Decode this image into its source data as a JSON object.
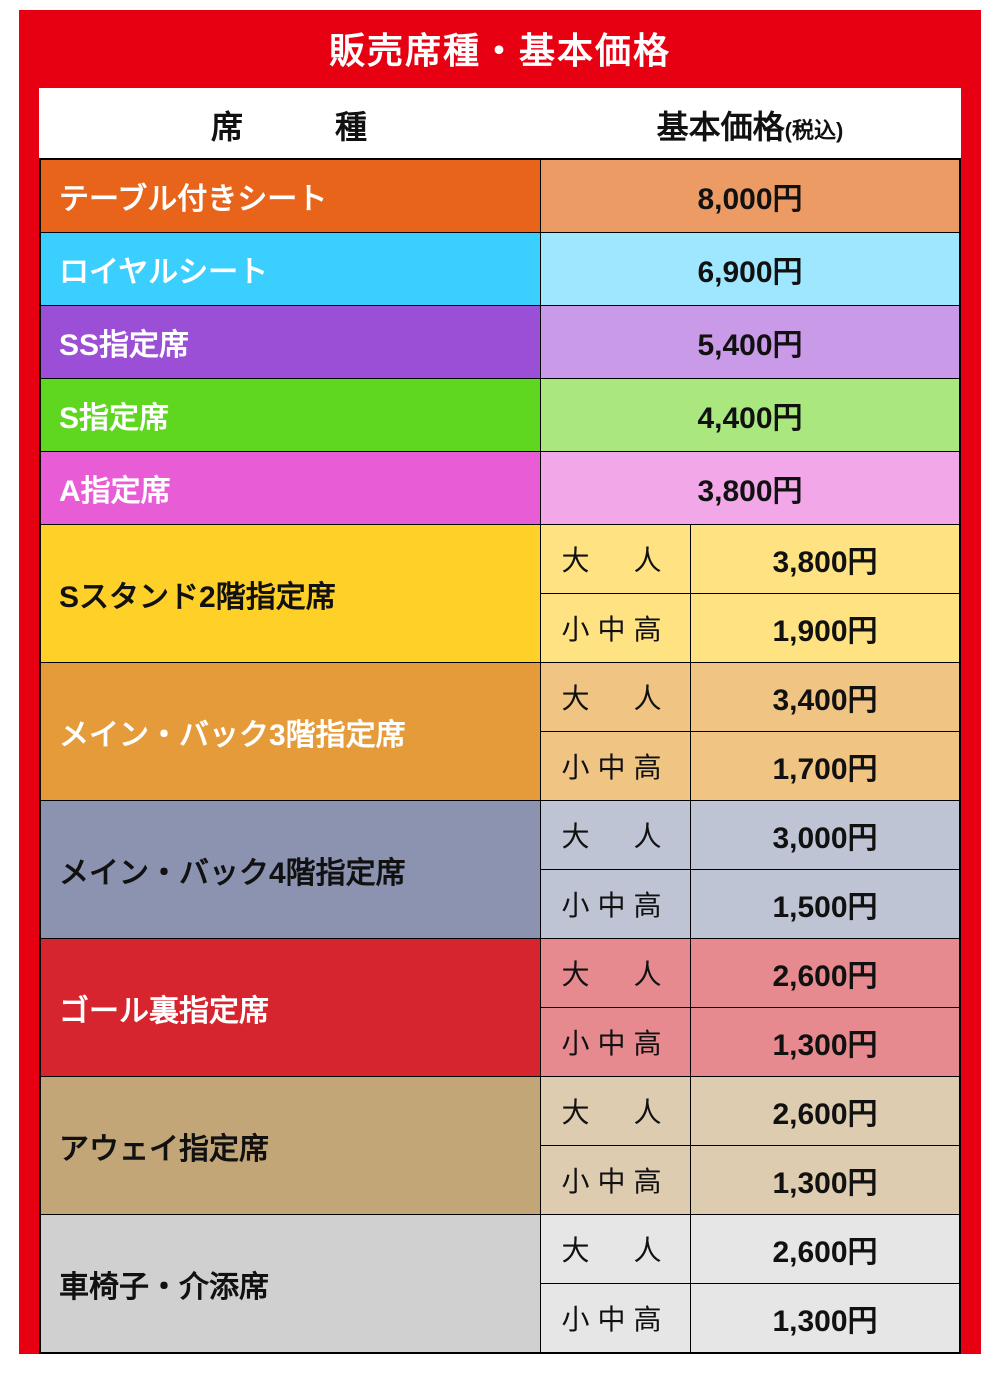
{
  "title": "販売席種・基本価格",
  "headers": {
    "seat": "席　種",
    "price": "基本価格",
    "tax": "(税込)"
  },
  "simple_rows": [
    {
      "name": "テーブル付きシート",
      "price": "8,000円",
      "seat_bg": "#e8641b",
      "price_bg": "#ed9b65",
      "text_color": "white"
    },
    {
      "name": "ロイヤルシート",
      "price": "6,900円",
      "seat_bg": "#3bcfff",
      "price_bg": "#9fe7ff",
      "text_color": "white"
    },
    {
      "name": "SS指定席",
      "price": "5,400円",
      "seat_bg": "#9b4fd6",
      "price_bg": "#c99ae8",
      "text_color": "white"
    },
    {
      "name": "S指定席",
      "price": "4,400円",
      "seat_bg": "#5fd620",
      "price_bg": "#aae87f",
      "text_color": "white"
    },
    {
      "name": "A指定席",
      "price": "3,800円",
      "seat_bg": "#e85cd6",
      "price_bg": "#f2a8e8",
      "text_color": "white"
    }
  ],
  "group_rows": [
    {
      "name": "Sスタンド2階指定席",
      "seat_bg": "#ffd027",
      "sub_bg": "#ffe382",
      "price_bg": "#ffe382",
      "text_color": "#111",
      "subs": [
        {
          "age": "大　人",
          "price": "3,800円"
        },
        {
          "age": "小中高",
          "price": "1,900円"
        }
      ]
    },
    {
      "name": "メイン・バック3階指定席",
      "seat_bg": "#e69b3b",
      "sub_bg": "#f0c584",
      "price_bg": "#f0c584",
      "text_color": "white",
      "subs": [
        {
          "age": "大　人",
          "price": "3,400円"
        },
        {
          "age": "小中高",
          "price": "1,700円"
        }
      ]
    },
    {
      "name": "メイン・バック4階指定席",
      "seat_bg": "#8b93b0",
      "sub_bg": "#bfc4d4",
      "price_bg": "#bfc4d4",
      "text_color": "#111",
      "subs": [
        {
          "age": "大　人",
          "price": "3,000円"
        },
        {
          "age": "小中高",
          "price": "1,500円"
        }
      ]
    },
    {
      "name": "ゴール裏指定席",
      "seat_bg": "#d6252f",
      "sub_bg": "#e68a8f",
      "price_bg": "#e68a8f",
      "text_color": "white",
      "subs": [
        {
          "age": "大　人",
          "price": "2,600円"
        },
        {
          "age": "小中高",
          "price": "1,300円"
        }
      ]
    },
    {
      "name": "アウェイ指定席",
      "seat_bg": "#c3a678",
      "sub_bg": "#ddccb0",
      "price_bg": "#ddccb0",
      "text_color": "#111",
      "subs": [
        {
          "age": "大　人",
          "price": "2,600円"
        },
        {
          "age": "小中高",
          "price": "1,300円"
        }
      ]
    },
    {
      "name": "車椅子・介添席",
      "seat_bg": "#d0d0d0",
      "sub_bg": "#e6e6e6",
      "price_bg": "#e6e6e6",
      "text_color": "#111",
      "subs": [
        {
          "age": "大　人",
          "price": "2,600円"
        },
        {
          "age": "小中高",
          "price": "1,300円"
        }
      ]
    }
  ]
}
